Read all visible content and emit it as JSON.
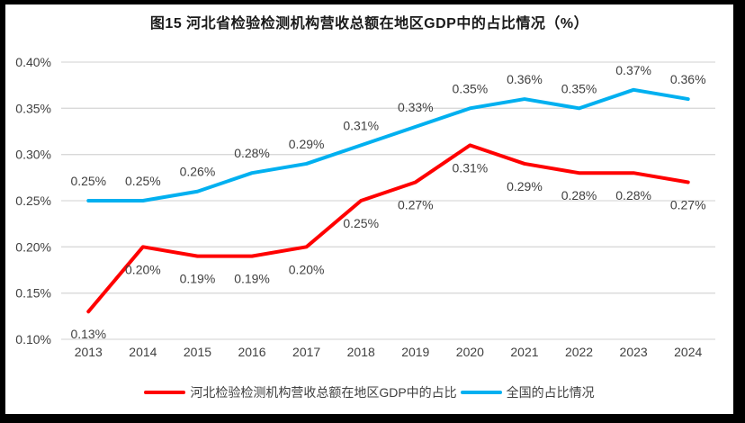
{
  "window": {
    "frame_color": "#000000",
    "canvas_color": "#ffffff"
  },
  "chart_data": {
    "type": "line",
    "title": "图15 河北省检验检测机构营收总额在地区GDP中的占比情况（%）",
    "categories": [
      "2013",
      "2014",
      "2015",
      "2016",
      "2017",
      "2018",
      "2019",
      "2020",
      "2021",
      "2022",
      "2023",
      "2024"
    ],
    "series": [
      {
        "name": "河北检验检测机构营收总额在地区GDP中的占比",
        "color": "#FF0000",
        "values": [
          0.13,
          0.2,
          0.19,
          0.19,
          0.2,
          0.25,
          0.27,
          0.31,
          0.29,
          0.28,
          0.28,
          0.27
        ],
        "labels": [
          "0.13%",
          "0.20%",
          "0.19%",
          "0.19%",
          "0.20%",
          "0.25%",
          "0.27%",
          "0.31%",
          "0.29%",
          "0.28%",
          "0.28%",
          "0.27%"
        ],
        "label_position": "below"
      },
      {
        "name": "全国的占比情况",
        "color": "#00B0F0",
        "values": [
          0.25,
          0.25,
          0.26,
          0.28,
          0.29,
          0.31,
          0.33,
          0.35,
          0.36,
          0.35,
          0.37,
          0.36
        ],
        "labels": [
          "0.25%",
          "0.25%",
          "0.26%",
          "0.28%",
          "0.29%",
          "0.31%",
          "0.33%",
          "0.35%",
          "0.36%",
          "0.35%",
          "0.37%",
          "0.36%"
        ],
        "label_position": "above"
      }
    ],
    "xlabel": "",
    "ylabel": "",
    "ylim": [
      0.1,
      0.4
    ],
    "ytick_step": 0.05,
    "ytick_labels": [
      "0.10%",
      "0.15%",
      "0.20%",
      "0.25%",
      "0.30%",
      "0.35%",
      "0.40%"
    ],
    "grid": "horizontal",
    "gridline_color": "#D9D9D9",
    "tick_label_color": "#404040",
    "data_label_color": "#404040",
    "line_width": 4,
    "legend_position": "bottom"
  }
}
